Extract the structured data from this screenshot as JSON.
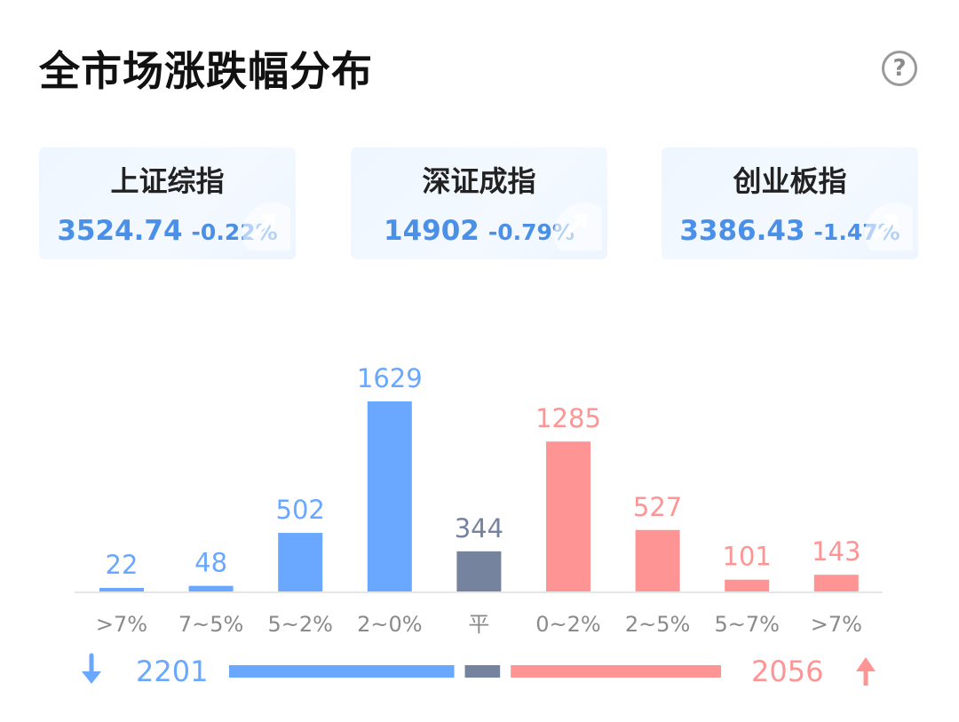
{
  "header": {
    "title": "全市场涨跌幅分布",
    "help_symbol": "?"
  },
  "indices": [
    {
      "name": "上证综指",
      "value": "3524.74",
      "change": "-0.22%"
    },
    {
      "name": "深证成指",
      "value": "14902",
      "change": "-0.79%"
    },
    {
      "name": "创业板指",
      "value": "3386.43",
      "change": "-1.47%"
    }
  ],
  "colors": {
    "down": "#6aa8ff",
    "flat": "#76839f",
    "up": "#ff9494",
    "axis": "#e6e6e6",
    "tick": "#8a8a8a"
  },
  "chart_data": {
    "type": "bar",
    "categories": [
      ">7%",
      "7~5%",
      "5~2%",
      "2~0%",
      "平",
      "0~2%",
      "2~5%",
      "5~7%",
      ">7%"
    ],
    "values": [
      22,
      48,
      502,
      1629,
      344,
      1285,
      527,
      101,
      143
    ],
    "groups": [
      "down",
      "down",
      "down",
      "down",
      "flat",
      "up",
      "up",
      "up",
      "up"
    ],
    "ylim": [
      0,
      1629
    ]
  },
  "summary": {
    "down_total": "2201",
    "up_total": "2056",
    "flat_total": 344
  }
}
